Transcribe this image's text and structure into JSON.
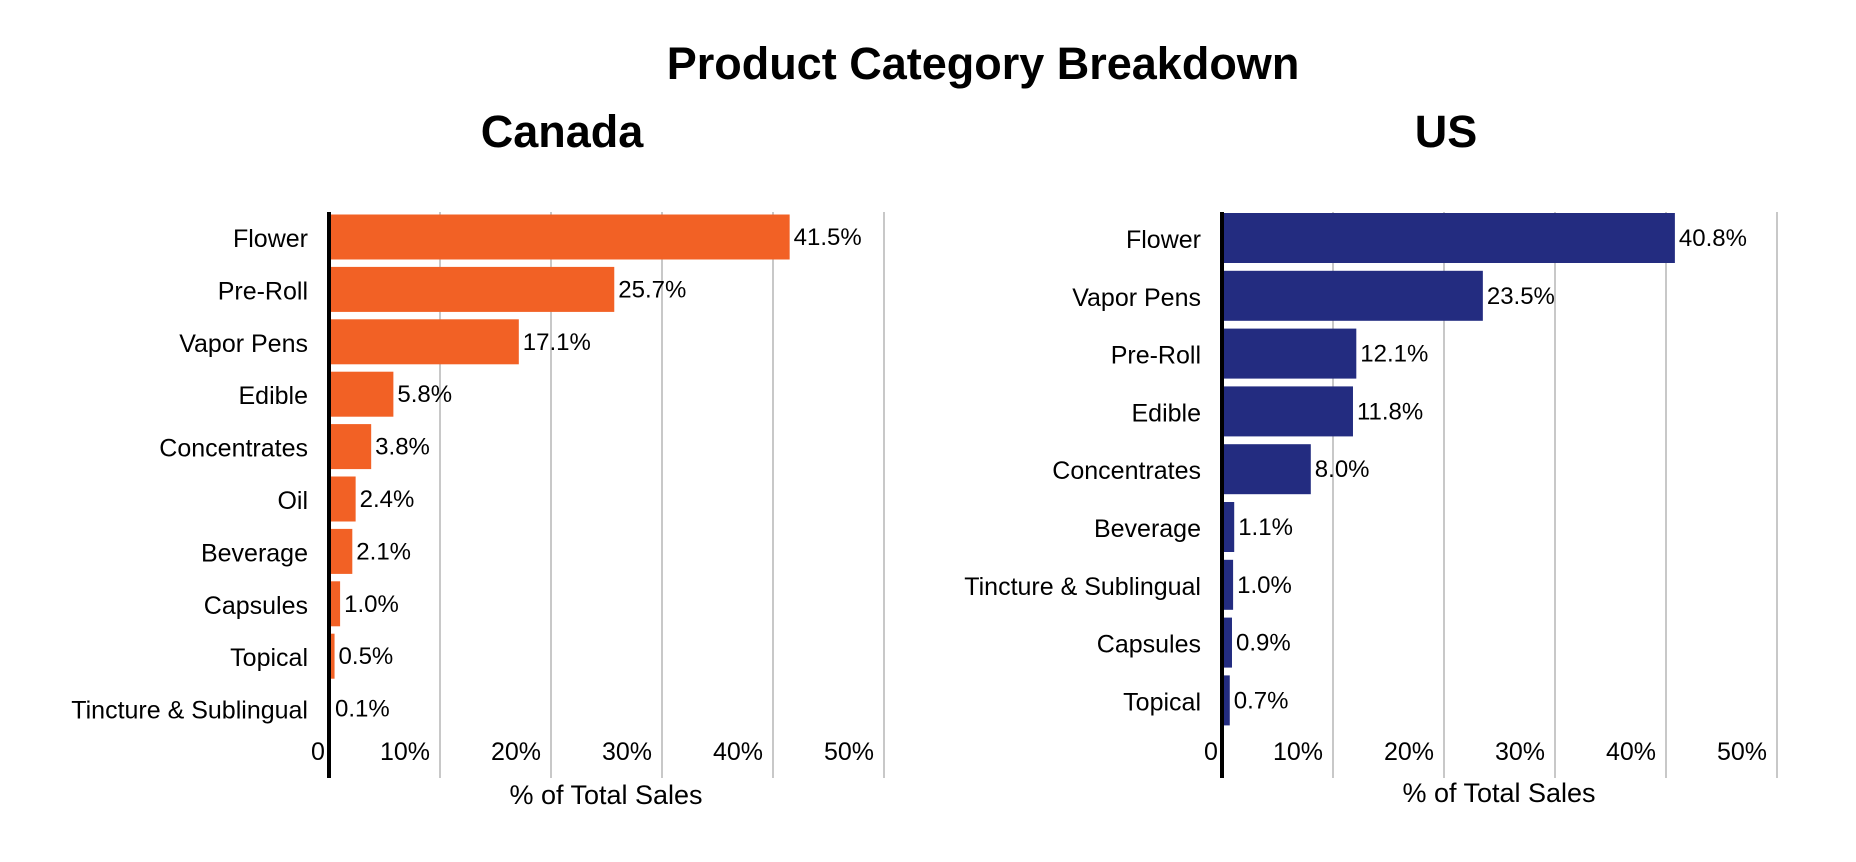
{
  "title": "Product Category Breakdown",
  "chart_data": [
    {
      "type": "bar",
      "orientation": "horizontal",
      "title": "Canada",
      "categories": [
        "Flower",
        "Pre-Roll",
        "Vapor Pens",
        "Edible",
        "Concentrates",
        "Oil",
        "Beverage",
        "Capsules",
        "Topical",
        "Tincture & Sublingual"
      ],
      "values": [
        41.5,
        25.7,
        17.1,
        5.8,
        3.8,
        2.4,
        2.1,
        1.0,
        0.5,
        0.1
      ],
      "value_labels": [
        "41.5%",
        "25.7%",
        "17.1%",
        "5.8%",
        "3.8%",
        "2.4%",
        "2.1%",
        "1.0%",
        "0.5%",
        "0.1%"
      ],
      "xlabel": "% of Total Sales",
      "ylabel": "",
      "xlim": [
        0,
        50
      ],
      "xticks": [
        0,
        10,
        20,
        30,
        40,
        50
      ],
      "xtick_labels": [
        "0",
        "10%",
        "20%",
        "30%",
        "40%",
        "50%"
      ],
      "color": "#F26125",
      "grid": true
    },
    {
      "type": "bar",
      "orientation": "horizontal",
      "title": "US",
      "categories": [
        "Flower",
        "Vapor Pens",
        "Pre-Roll",
        "Edible",
        "Concentrates",
        "Beverage",
        "Tincture & Sublingual",
        "Capsules",
        "Topical"
      ],
      "values": [
        40.8,
        23.5,
        12.1,
        11.8,
        8.0,
        1.1,
        1.0,
        0.9,
        0.7
      ],
      "value_labels": [
        "40.8%",
        "23.5%",
        "12.1%",
        "11.8%",
        "8.0%",
        "1.1%",
        "1.0%",
        "0.9%",
        "0.7%"
      ],
      "xlabel": "% of Total Sales",
      "ylabel": "",
      "xlim": [
        0,
        50
      ],
      "xticks": [
        0,
        10,
        20,
        30,
        40,
        50
      ],
      "xtick_labels": [
        "0",
        "10%",
        "20%",
        "30%",
        "40%",
        "50%"
      ],
      "color": "#232C80",
      "grid": true
    }
  ]
}
